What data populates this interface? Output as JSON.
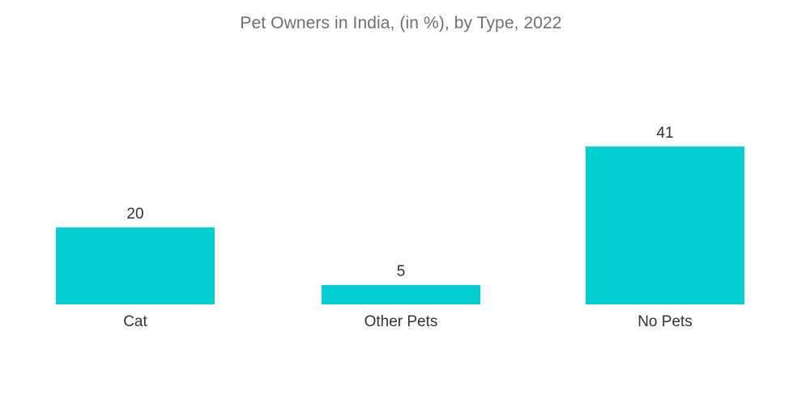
{
  "chart_data": {
    "type": "bar",
    "title": "Pet Owners in India, (in %), by Type, 2022",
    "categories": [
      "Cat",
      "Other Pets",
      "No Pets"
    ],
    "values": [
      20,
      5,
      41
    ],
    "value_labels": [
      "20",
      "5",
      "41"
    ],
    "xlabel": "",
    "ylabel": "",
    "ylim": [
      0,
      41
    ],
    "grid": false,
    "legend": "none",
    "bar_color": "#00CED1"
  }
}
